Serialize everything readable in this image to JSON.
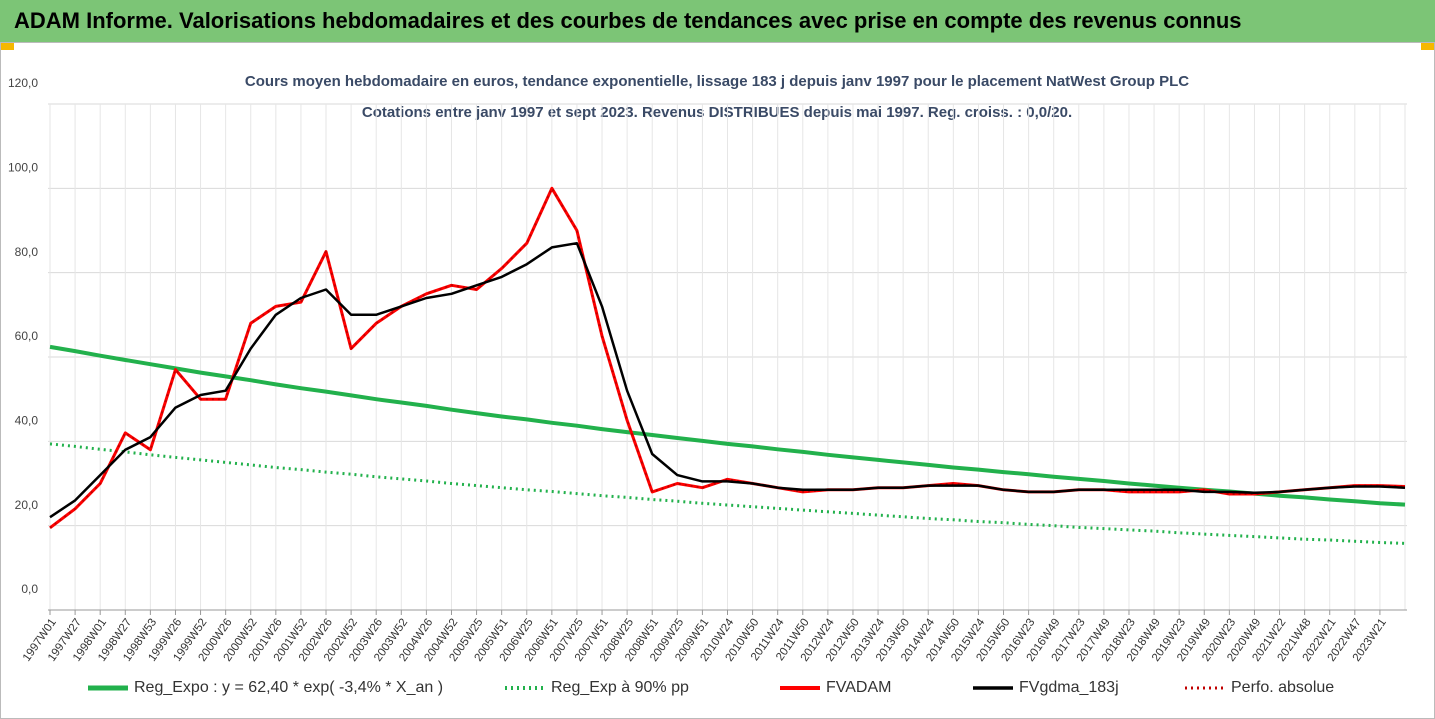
{
  "header": {
    "title": "ADAM Informe. Valorisations hebdomadaires et des courbes de tendances avec prise en compte des revenus connus"
  },
  "chart_data": {
    "type": "line",
    "title": "Cours moyen hebdomadaire en euros, tendance exponentielle, lissage 183 j depuis janv 1997 pour le placement NatWest Group PLC",
    "subtitle": "Cotations entre janv 1997 et sept 2023. Revenus DISTRIBUES depuis mai 1997. Reg. croiss. : 0,0/20.",
    "categories": [
      "1997W01",
      "1997W27",
      "1998W01",
      "1998W27",
      "1998W53",
      "1999W26",
      "1999W52",
      "2000W26",
      "2000W52",
      "2001W26",
      "2001W52",
      "2002W26",
      "2002W52",
      "2003W26",
      "2003W52",
      "2004W26",
      "2004W52",
      "2005W25",
      "2005W51",
      "2006W25",
      "2006W51",
      "2007W25",
      "2007W51",
      "2008W25",
      "2008W51",
      "2009W25",
      "2009W51",
      "2010W24",
      "2010W50",
      "2011W24",
      "2011W50",
      "2012W24",
      "2012W50",
      "2013W24",
      "2013W50",
      "2014W24",
      "2014W50",
      "2015W24",
      "2015W50",
      "2016W23",
      "2016W49",
      "2017W23",
      "2017W49",
      "2018W23",
      "2018W49",
      "2019W23",
      "2019W49",
      "2020W23",
      "2020W49",
      "2021W22",
      "2021W48",
      "2022W21",
      "2022W47",
      "2023W21",
      null
    ],
    "series": [
      {
        "name": "Reg_Expo : y = 62,40 * exp( -3,4% *  X_an )",
        "color": "#22b14c",
        "dash": false,
        "values": [
          62.4,
          61.4,
          60.3,
          59.3,
          58.3,
          57.3,
          56.3,
          55.4,
          54.5,
          53.5,
          52.6,
          51.8,
          50.9,
          50.0,
          49.2,
          48.4,
          47.5,
          46.7,
          45.9,
          45.2,
          44.4,
          43.7,
          42.9,
          42.2,
          41.5,
          40.8,
          40.1,
          39.4,
          38.8,
          38.1,
          37.5,
          36.8,
          36.2,
          35.6,
          35.0,
          34.4,
          33.8,
          33.3,
          32.7,
          32.2,
          31.6,
          31.1,
          30.6,
          30.0,
          29.5,
          29.0,
          28.5,
          28.1,
          27.6,
          27.1,
          26.7,
          26.2,
          25.8,
          25.3,
          25.0
        ]
      },
      {
        "name": "Reg_Exp à 90% pp",
        "color": "#22b14c",
        "dash": true,
        "values": [
          39.4,
          38.8,
          38.1,
          37.5,
          36.8,
          36.2,
          35.6,
          35.0,
          34.4,
          33.8,
          33.3,
          32.7,
          32.2,
          31.6,
          31.1,
          30.6,
          30.0,
          29.5,
          29.0,
          28.5,
          28.1,
          27.6,
          27.1,
          26.7,
          26.2,
          25.8,
          25.3,
          24.9,
          24.5,
          24.1,
          23.7,
          23.3,
          22.9,
          22.5,
          22.1,
          21.7,
          21.4,
          21.0,
          20.7,
          20.3,
          20.0,
          19.6,
          19.3,
          19.0,
          18.7,
          18.3,
          18.0,
          17.7,
          17.4,
          17.1,
          16.8,
          16.6,
          16.3,
          16.0,
          15.8
        ]
      },
      {
        "name": "FVADAM",
        "color": "#ff0000",
        "dash": false,
        "values": [
          19.5,
          24,
          30,
          42,
          38,
          57,
          50,
          50,
          68,
          72,
          73,
          85,
          62,
          68,
          72,
          75,
          77,
          76,
          81,
          87,
          100,
          90,
          65,
          45,
          28,
          30,
          29,
          31,
          30,
          29,
          28,
          28.5,
          28.5,
          29,
          29,
          29.5,
          30,
          29.5,
          28.5,
          28,
          28,
          28.5,
          28.5,
          28,
          28,
          28,
          28.5,
          27.5,
          27.5,
          28,
          28.5,
          29,
          29.5,
          29.5,
          29.3
        ]
      },
      {
        "name": "FVgdma_183j",
        "color": "#000000",
        "dash": false,
        "values": [
          22,
          26,
          32,
          38,
          41,
          48,
          51,
          52,
          62,
          70,
          74,
          76,
          70,
          70,
          72,
          74,
          75,
          77,
          79,
          82,
          86,
          87,
          72,
          52,
          37,
          32,
          30.5,
          30.5,
          30,
          29,
          28.5,
          28.5,
          28.5,
          29,
          29,
          29.5,
          29.5,
          29.5,
          28.5,
          28,
          28,
          28.5,
          28.5,
          28.5,
          28.5,
          28.5,
          28,
          28,
          27.8,
          28,
          28.5,
          29,
          29.3,
          29.3,
          29
        ]
      },
      {
        "name": "Perfo. absolue",
        "color": "#c00000",
        "dash": true,
        "values": [
          19.5,
          24,
          30,
          42,
          38,
          57,
          50,
          50,
          68,
          72,
          73,
          85,
          62,
          68,
          72,
          75,
          77,
          76,
          81,
          87,
          100,
          90,
          65,
          45,
          28,
          30,
          29,
          31,
          30,
          29,
          28,
          28.5,
          28.5,
          29,
          29,
          29.5,
          30,
          29.5,
          28.5,
          28,
          28,
          28.5,
          28.5,
          28,
          28,
          28,
          28.5,
          27.5,
          27.5,
          28,
          28.5,
          29,
          29.5,
          29.5,
          29.3
        ]
      }
    ],
    "ylim": [
      0,
      120
    ],
    "yticks": [
      {
        "value": 0,
        "label": "0,0"
      },
      {
        "value": 20,
        "label": "20,0"
      },
      {
        "value": 40,
        "label": "40,0"
      },
      {
        "value": 60,
        "label": "60,0"
      },
      {
        "value": 80,
        "label": "80,0"
      },
      {
        "value": 100,
        "label": "100,0"
      },
      {
        "value": 120,
        "label": "120,0"
      }
    ],
    "grid": true
  }
}
